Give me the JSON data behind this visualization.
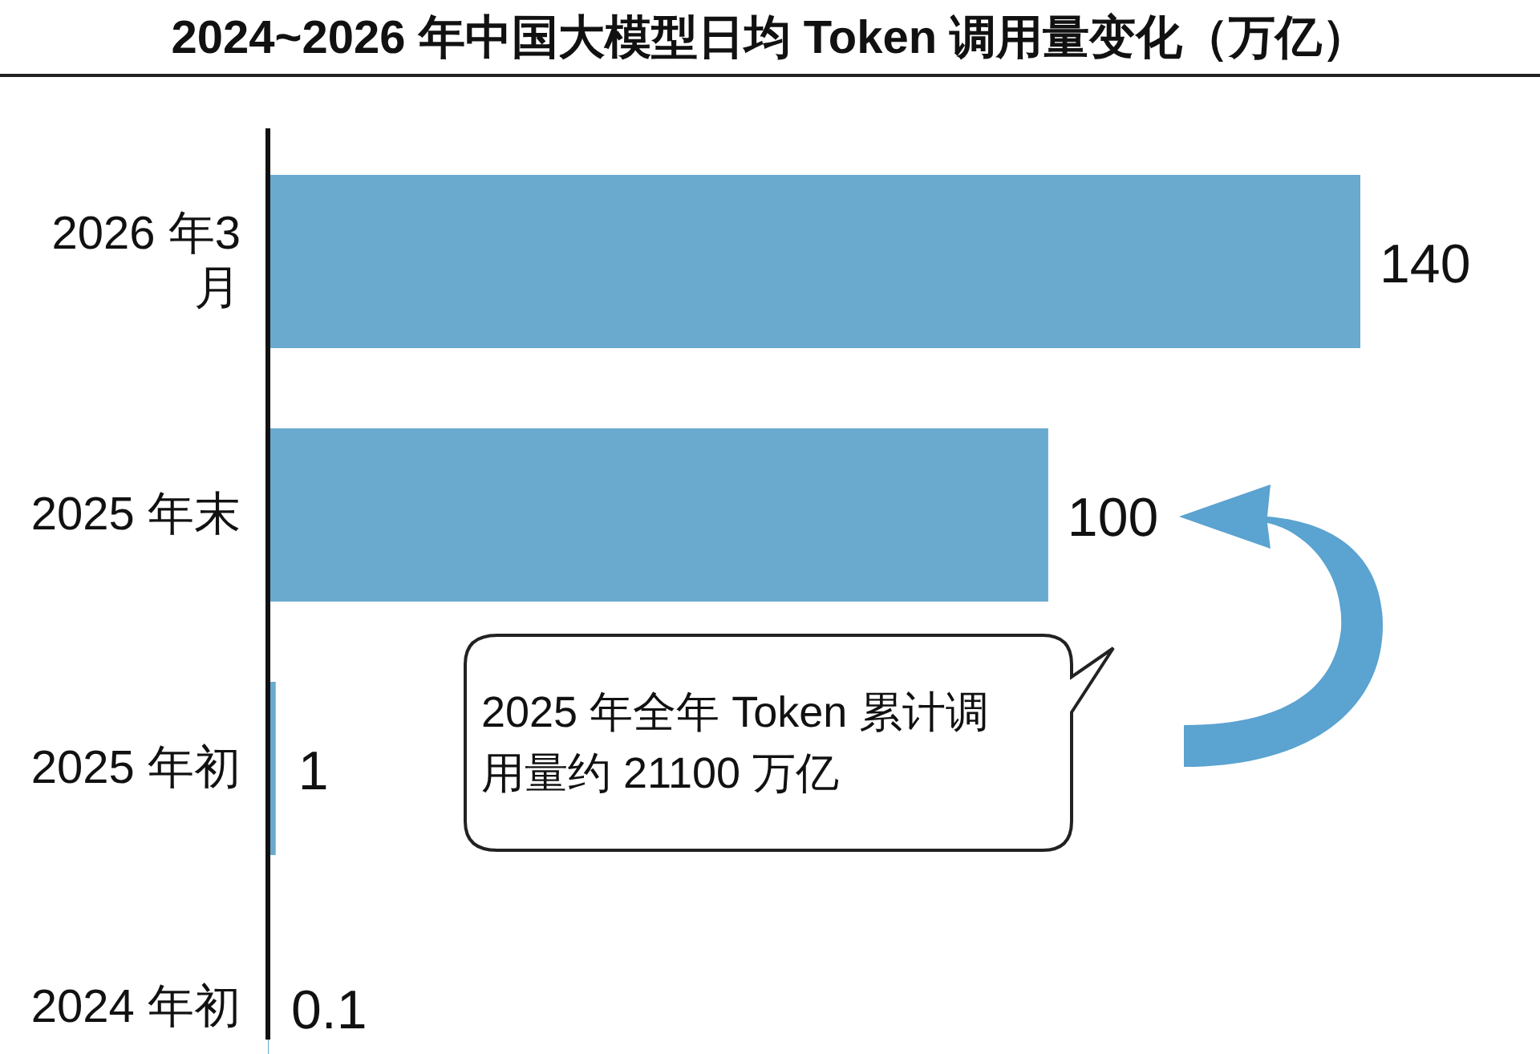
{
  "chart_data": {
    "type": "bar",
    "orientation": "horizontal",
    "title": "2024~2026 年中国大模型日均 Token 调用量变化（万亿）",
    "categories": [
      "2026 年3 月",
      "2025 年末",
      "2025 年初",
      "2024 年初"
    ],
    "values": [
      140,
      100,
      1,
      0.1
    ],
    "color": "#6aaacf",
    "data_labels": true,
    "annotations": [
      "2025 年全年 Token 累计调用量约 21100 万亿"
    ]
  }
}
